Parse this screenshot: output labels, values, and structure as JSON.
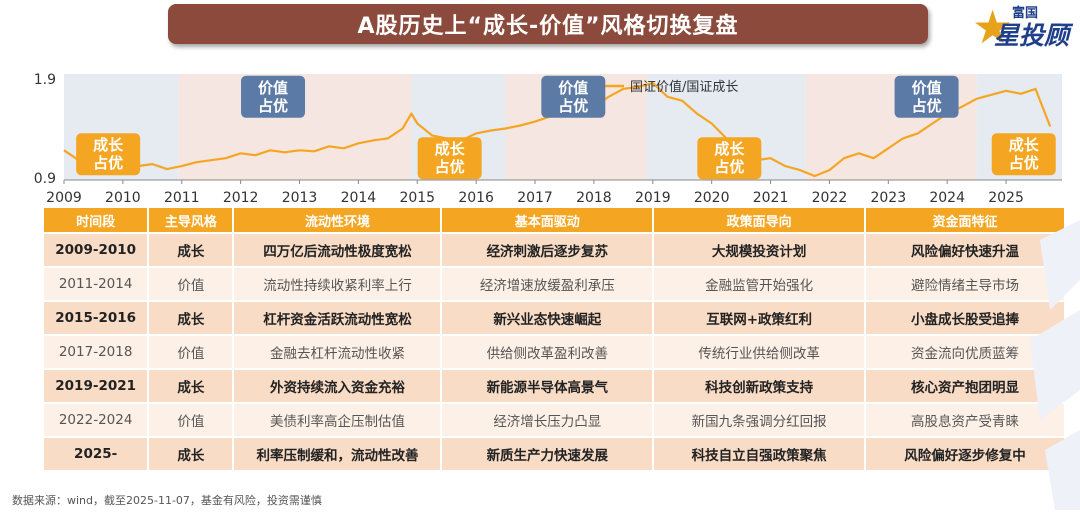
{
  "title": "A股历史上“成长-价值”风格切换复盘",
  "brand": {
    "small": "富国",
    "big": "星投顾"
  },
  "chart_data": {
    "type": "line",
    "series": [
      {
        "name": "国证价值/国证成长",
        "color": "#f4a623",
        "x": [
          2009.0,
          2009.25,
          2009.5,
          2009.75,
          2010.0,
          2010.25,
          2010.5,
          2010.75,
          2011.0,
          2011.25,
          2011.5,
          2011.75,
          2012.0,
          2012.25,
          2012.5,
          2012.75,
          2013.0,
          2013.25,
          2013.5,
          2013.75,
          2014.0,
          2014.25,
          2014.5,
          2014.75,
          2014.9,
          2015.0,
          2015.25,
          2015.5,
          2015.75,
          2016.0,
          2016.25,
          2016.5,
          2016.75,
          2017.0,
          2017.25,
          2017.5,
          2017.75,
          2018.0,
          2018.25,
          2018.5,
          2018.75,
          2019.0,
          2019.25,
          2019.5,
          2019.75,
          2020.0,
          2020.25,
          2020.5,
          2020.75,
          2021.0,
          2021.25,
          2021.5,
          2021.75,
          2022.0,
          2022.25,
          2022.5,
          2022.75,
          2023.0,
          2023.25,
          2023.5,
          2023.75,
          2024.0,
          2024.25,
          2024.5,
          2024.75,
          2025.0,
          2025.25,
          2025.5,
          2025.75
        ],
        "values": [
          1.18,
          1.08,
          1.12,
          1.16,
          1.05,
          1.02,
          1.04,
          0.99,
          1.02,
          1.06,
          1.08,
          1.1,
          1.15,
          1.13,
          1.18,
          1.16,
          1.18,
          1.17,
          1.22,
          1.2,
          1.25,
          1.28,
          1.3,
          1.4,
          1.55,
          1.45,
          1.33,
          1.3,
          1.28,
          1.35,
          1.38,
          1.4,
          1.43,
          1.47,
          1.52,
          1.55,
          1.6,
          1.62,
          1.72,
          1.8,
          1.82,
          1.86,
          1.72,
          1.68,
          1.55,
          1.45,
          1.3,
          1.18,
          1.08,
          1.1,
          1.02,
          0.98,
          0.92,
          0.98,
          1.1,
          1.15,
          1.1,
          1.2,
          1.3,
          1.35,
          1.45,
          1.55,
          1.62,
          1.7,
          1.74,
          1.78,
          1.75,
          1.8,
          1.42
        ]
      }
    ],
    "xlim": [
      2009.0,
      2025.95
    ],
    "ylim": [
      0.88,
      1.95
    ],
    "yticks": [
      "1.9",
      "0.9"
    ],
    "xticks": [
      "2009",
      "2010",
      "2011",
      "2012",
      "2013",
      "2014",
      "2015",
      "2016",
      "2017",
      "2018",
      "2019",
      "2020",
      "2021",
      "2022",
      "2023",
      "2024",
      "2025"
    ],
    "legend": {
      "text": "国证价值/国证成长",
      "placement": "top-center"
    },
    "regions": [
      {
        "start": 2009.0,
        "end": 2010.95,
        "type": "growth"
      },
      {
        "start": 2010.95,
        "end": 2014.9,
        "type": "value"
      },
      {
        "start": 2014.9,
        "end": 2016.5,
        "type": "growth"
      },
      {
        "start": 2016.5,
        "end": 2018.9,
        "type": "value"
      },
      {
        "start": 2018.9,
        "end": 2021.6,
        "type": "growth"
      },
      {
        "start": 2021.6,
        "end": 2024.5,
        "type": "value"
      },
      {
        "start": 2024.5,
        "end": 2025.95,
        "type": "growth"
      }
    ],
    "region_colors": {
      "growth": "#e6eaf1",
      "value": "#f6e6e1"
    },
    "annotations": [
      {
        "lines": [
          "成长",
          "占优"
        ],
        "kind": "growth",
        "x": 2009.75,
        "y": 1.14
      },
      {
        "lines": [
          "价值",
          "占优"
        ],
        "kind": "value",
        "x": 2012.55,
        "y": 1.72
      },
      {
        "lines": [
          "成长",
          "占优"
        ],
        "kind": "growth",
        "x": 2015.55,
        "y": 1.1
      },
      {
        "lines": [
          "价值",
          "占优"
        ],
        "kind": "value",
        "x": 2017.65,
        "y": 1.72
      },
      {
        "lines": [
          "成长",
          "占优"
        ],
        "kind": "growth",
        "x": 2020.3,
        "y": 1.1
      },
      {
        "lines": [
          "价值",
          "占优"
        ],
        "kind": "value",
        "x": 2023.65,
        "y": 1.72
      },
      {
        "lines": [
          "成长",
          "占优"
        ],
        "kind": "growth",
        "x": 2025.3,
        "y": 1.14
      }
    ],
    "annotation_colors": {
      "growth": "#f4a623",
      "value": "#5b7aa6"
    }
  },
  "table": {
    "headers": [
      "时间段",
      "主导风格",
      "流动性环境",
      "基本面驱动",
      "政策面导向",
      "资金面特征"
    ],
    "rows": [
      {
        "kind": "growth",
        "cells": [
          "2009-2010",
          "成长",
          "四万亿后流动性极度宽松",
          "经济刺激后逐步复苏",
          "大规模投资计划",
          "风险偏好快速升温"
        ]
      },
      {
        "kind": "value",
        "cells": [
          "2011-2014",
          "价值",
          "流动性持续收紧利率上行",
          "经济增速放缓盈利承压",
          "金融监管开始强化",
          "避险情绪主导市场"
        ]
      },
      {
        "kind": "growth",
        "cells": [
          "2015-2016",
          "成长",
          "杠杆资金活跃流动性宽松",
          "新兴业态快速崛起",
          "互联网+政策红利",
          "小盘成长股受追捧"
        ]
      },
      {
        "kind": "value",
        "cells": [
          "2017-2018",
          "价值",
          "金融去杠杆流动性收紧",
          "供给侧改革盈利改善",
          "传统行业供给侧改革",
          "资金流向优质蓝筹"
        ]
      },
      {
        "kind": "growth",
        "cells": [
          "2019-2021",
          "成长",
          "外资持续流入资金充裕",
          "新能源半导体高景气",
          "科技创新政策支持",
          "核心资产抱团明显"
        ]
      },
      {
        "kind": "value",
        "cells": [
          "2022-2024",
          "价值",
          "美债利率高企压制估值",
          "经济增长压力凸显",
          "新国九条强调分红回报",
          "高股息资产受青睐"
        ]
      },
      {
        "kind": "growth",
        "cells": [
          "2025-",
          "成长",
          "利率压制缓和，流动性改善",
          "新质生产力快速发展",
          "科技自立自强政策聚焦",
          "风险偏好逐步修复中"
        ]
      }
    ]
  },
  "footer": "数据来源：wind，截至2025-11-07，基金有风险，投资需谨慎"
}
